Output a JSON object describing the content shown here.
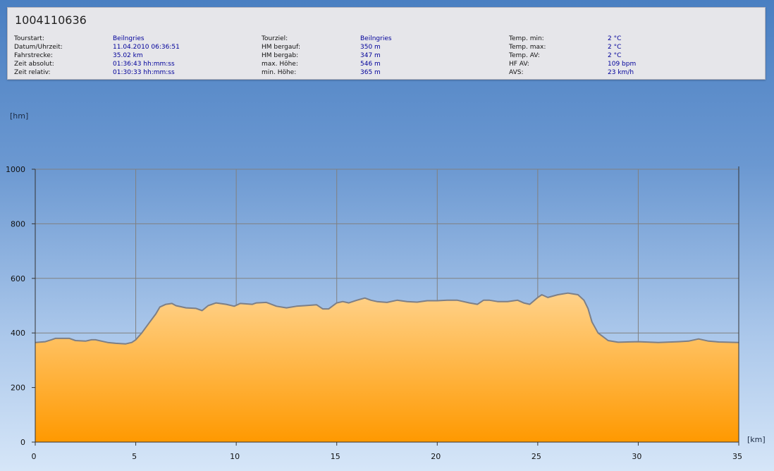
{
  "header": {
    "title": "1004110636",
    "col1": {
      "labels": [
        "Tourstart:",
        "Datum/Uhrzeit:",
        "Fahrstrecke:",
        "Zeit absolut:",
        "Zeit relativ:"
      ],
      "values": [
        "Beilngries",
        "11.04.2010 06:36:51",
        "35.02 km",
        "01:36:43 hh:mm:ss",
        "01:30:33 hh:mm:ss"
      ]
    },
    "col2": {
      "labels": [
        "Tourziel:",
        "HM bergauf:",
        "HM bergab:",
        "max. Höhe:",
        "min. Höhe:"
      ],
      "values": [
        "Beilngries",
        "350 m",
        "347 m",
        "546 m",
        "365 m"
      ]
    },
    "col3": {
      "labels": [
        "Temp. min:",
        "Temp. max:",
        "Temp. AV:",
        "HF AV:",
        "AVS:"
      ],
      "values": [
        "2 °C",
        "2 °C",
        "2 °C",
        "109 bpm",
        "23 km/h"
      ]
    }
  },
  "chart_data": {
    "type": "area",
    "ylabel": "[hm]",
    "xlabel": "[km]",
    "xlim": [
      0,
      35
    ],
    "ylim": [
      0,
      1000
    ],
    "xticks": [
      0,
      5,
      10,
      15,
      20,
      25,
      30,
      35
    ],
    "yticks": [
      0,
      200,
      400,
      600,
      800,
      1000
    ],
    "grid": true,
    "colors": {
      "fill_top": "#ffd28a",
      "fill_bottom": "#ff9900",
      "line": "#7d7f86",
      "grid": "#808080"
    },
    "x": [
      0,
      0.5,
      0.8,
      1.0,
      1.7,
      2.0,
      2.5,
      2.8,
      3.0,
      3.3,
      3.6,
      4.0,
      4.5,
      4.8,
      5.0,
      5.3,
      5.7,
      6.0,
      6.2,
      6.5,
      6.8,
      7.0,
      7.5,
      8.0,
      8.3,
      8.6,
      9.0,
      9.5,
      9.9,
      10.2,
      10.8,
      11.0,
      11.5,
      12.0,
      12.5,
      13.0,
      13.4,
      14.0,
      14.3,
      14.6,
      15.0,
      15.3,
      15.6,
      16.0,
      16.4,
      16.7,
      17.0,
      17.5,
      18.0,
      18.5,
      19.0,
      19.5,
      20.0,
      20.5,
      21.0,
      21.3,
      21.6,
      22.0,
      22.3,
      22.6,
      23.0,
      23.5,
      24.0,
      24.3,
      24.6,
      25.0,
      25.2,
      25.5,
      26.0,
      26.5,
      27.0,
      27.3,
      27.5,
      27.7,
      28.0,
      28.5,
      29.0,
      30.0,
      31.0,
      32.0,
      32.5,
      33.0,
      33.5,
      34.0,
      35.0
    ],
    "y": [
      365,
      368,
      375,
      380,
      380,
      372,
      370,
      375,
      375,
      370,
      365,
      362,
      360,
      365,
      375,
      400,
      440,
      470,
      495,
      505,
      508,
      500,
      492,
      490,
      482,
      500,
      510,
      505,
      498,
      508,
      505,
      510,
      512,
      498,
      492,
      498,
      500,
      503,
      488,
      488,
      510,
      515,
      510,
      520,
      528,
      520,
      515,
      512,
      520,
      515,
      513,
      518,
      518,
      520,
      520,
      515,
      510,
      505,
      520,
      520,
      515,
      515,
      520,
      510,
      505,
      530,
      540,
      530,
      540,
      546,
      540,
      520,
      490,
      440,
      400,
      372,
      366,
      368,
      365,
      368,
      370,
      378,
      370,
      367,
      365
    ]
  }
}
